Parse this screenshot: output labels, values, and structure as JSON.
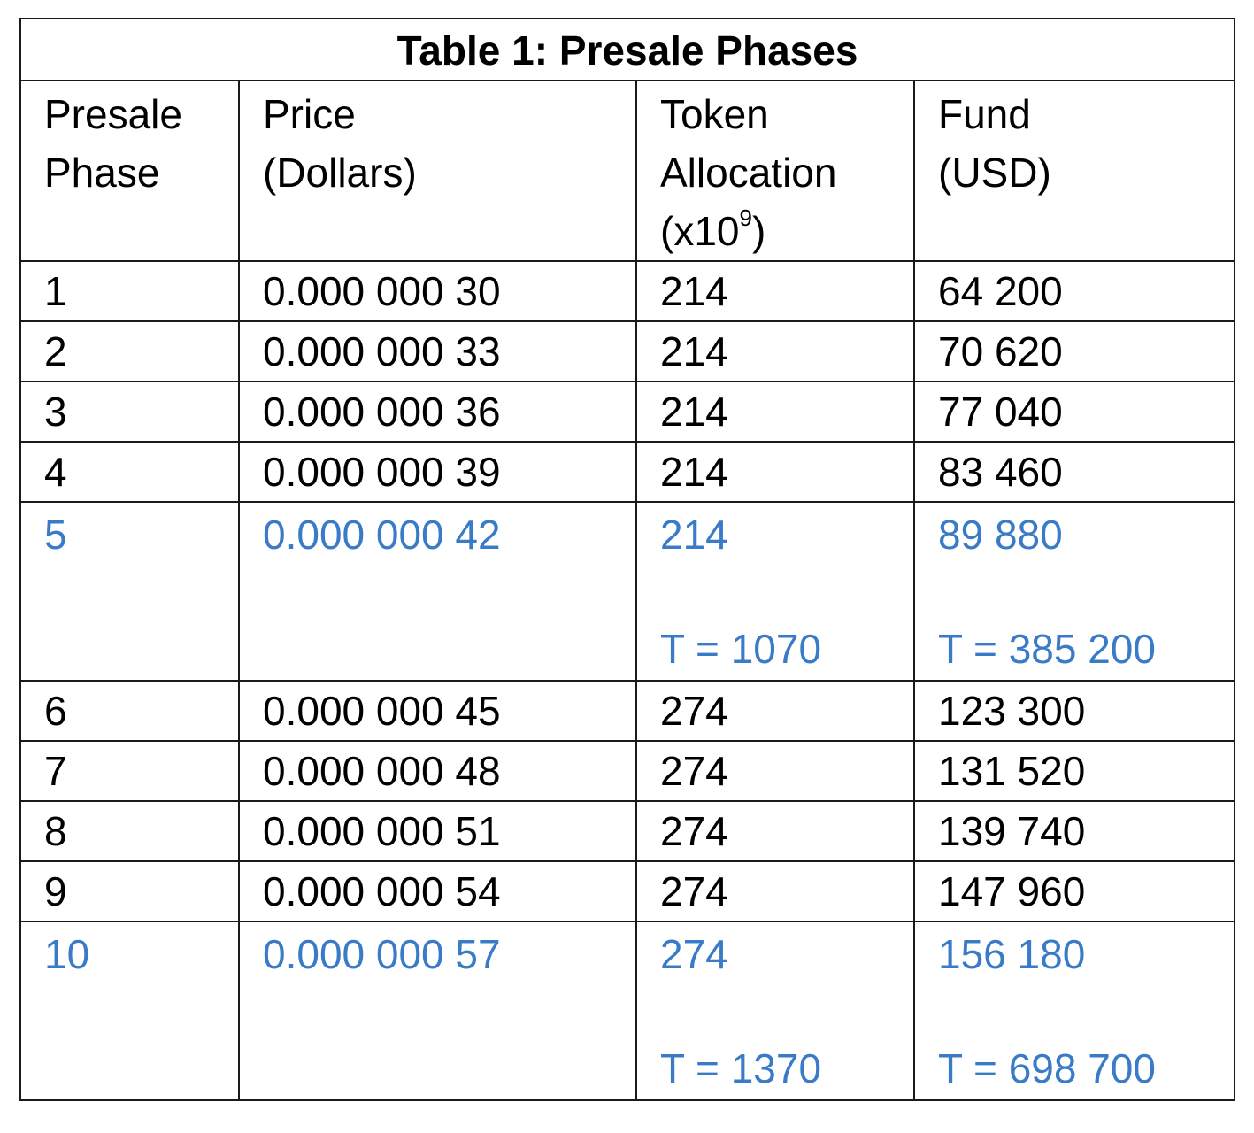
{
  "table": {
    "title": "Table 1: Presale Phases",
    "headers": [
      {
        "lines": [
          "Presale",
          "Phase"
        ]
      },
      {
        "lines": [
          "Price",
          "(Dollars)"
        ]
      },
      {
        "lines": [
          "Token",
          "Allocation",
          "(x10"
        ],
        "sup": "9",
        "suffix": ")"
      },
      {
        "lines": [
          "Fund",
          "(USD)"
        ]
      }
    ],
    "rows": [
      {
        "phase": "1",
        "price": "0.000 000 30",
        "tokens": "214",
        "fund": "64 200"
      },
      {
        "phase": "2",
        "price": "0.000 000 33",
        "tokens": "214",
        "fund": "70 620"
      },
      {
        "phase": "3",
        "price": "0.000 000 36",
        "tokens": "214",
        "fund": "77 040"
      },
      {
        "phase": "4",
        "price": "0.000 000 39",
        "tokens": "214",
        "fund": "83 460"
      },
      {
        "phase": "5",
        "price": "0.000 000 42",
        "tokens": "214",
        "fund": "89 880",
        "tokens_total": "T = 1070",
        "fund_total": "T = 385 200"
      },
      {
        "phase": "6",
        "price": "0.000 000 45",
        "tokens": "274",
        "fund": "123 300"
      },
      {
        "phase": "7",
        "price": "0.000 000 48",
        "tokens": "274",
        "fund": "131 520"
      },
      {
        "phase": "8",
        "price": "0.000 000 51",
        "tokens": "274",
        "fund": "139 740"
      },
      {
        "phase": "9",
        "price": "0.000 000 54",
        "tokens": "274",
        "fund": "147 960"
      },
      {
        "phase": "10",
        "price": "0.000 000 57",
        "tokens": "274",
        "fund": "156 180",
        "tokens_total": "T = 1370",
        "fund_total": "T = 698 700"
      }
    ]
  },
  "colors": {
    "text": "#000000",
    "highlight": "#3a7bc8",
    "border": "#1a1a1a"
  }
}
